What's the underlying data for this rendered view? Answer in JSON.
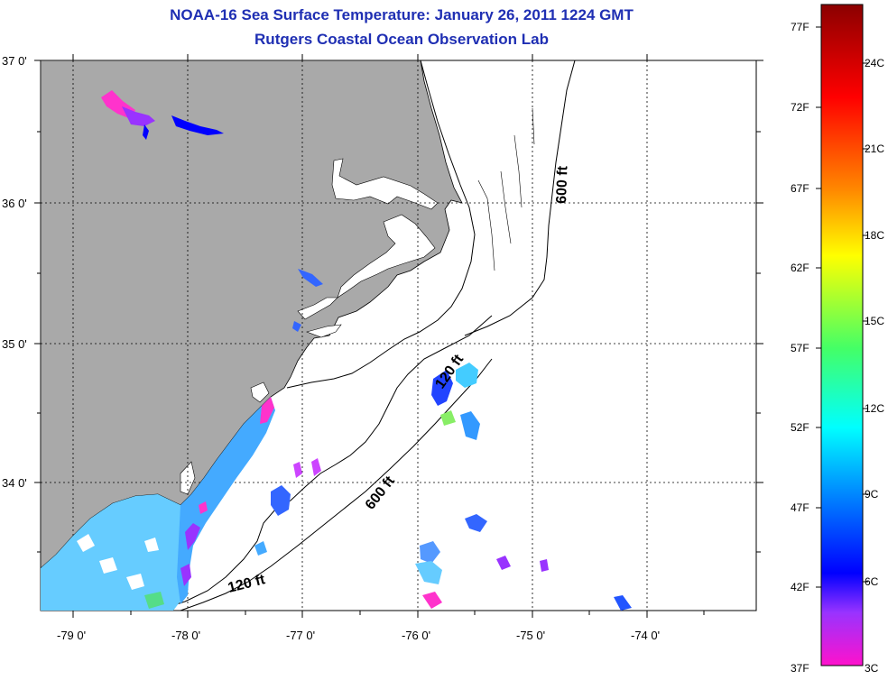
{
  "title_line1": "NOAA-16 Sea Surface Temperature:  January 26, 2011 1224 GMT",
  "title_line2": "Rutgers Coastal Ocean Observation Lab",
  "lat_labels": [
    "37 0'",
    "36 0'",
    "35 0'",
    "34 0'"
  ],
  "lon_labels": [
    "-79 0'",
    "-78 0'",
    "-77 0'",
    "-76 0'",
    "-75 0'",
    "-74 0'"
  ],
  "depth_labels": {
    "d600_north": "600 ft",
    "d120_north": "120 ft",
    "d600_south": "600 ft",
    "d120_south": "120 ft"
  },
  "colorbar": {
    "fahrenheit": [
      "77F",
      "72F",
      "67F",
      "62F",
      "57F",
      "52F",
      "47F",
      "42F",
      "37F"
    ],
    "celsius": [
      "24C",
      "21C",
      "18C",
      "15C",
      "12C",
      "9C",
      "6C",
      "3C"
    ]
  },
  "colors": {
    "land": "#a9a9a9",
    "ocean": "#ffffff",
    "title": "#1f2fb3"
  }
}
